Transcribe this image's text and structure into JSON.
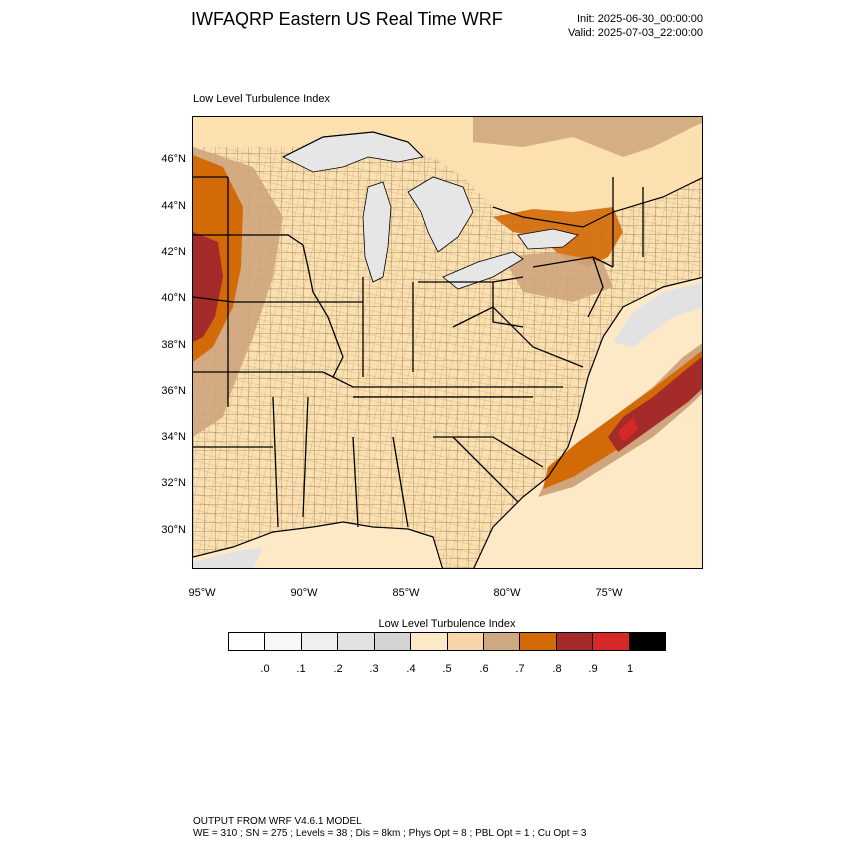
{
  "header": {
    "title": "IWFAQRP Eastern US Real Time WRF",
    "init": "Init: 2025-06-30_00:00:00",
    "valid": "Valid: 2025-07-03_22:00:00"
  },
  "map": {
    "field_label": "Low Level Turbulence Index",
    "lat_labels": [
      "46°N",
      "44°N",
      "42°N",
      "40°N",
      "38°N",
      "36°N",
      "34°N",
      "32°N",
      "30°N"
    ],
    "lon_labels": [
      "95°W",
      "90°W",
      "85°W",
      "80°W",
      "75°W"
    ],
    "colors": {
      "land_base": "#fde0b0",
      "water": "#e6e6e6",
      "ocean_light": "#fde9c6",
      "brown": "#cfa57d",
      "orange": "#d36a08",
      "dark_red": "#a52a2a",
      "red": "#d62828",
      "county_lines": "#000000"
    }
  },
  "legend": {
    "title": "Low Level Turbulence Index",
    "colors": [
      "#ffffff",
      "#f7f7f7",
      "#efefef",
      "#e2e2e2",
      "#d3d3d3",
      "#fde9c6",
      "#f6d6a9",
      "#cda883",
      "#d36a08",
      "#a52a2a",
      "#d62828",
      "#000000"
    ],
    "ticks": [
      ".0",
      ".1",
      ".2",
      ".3",
      ".4",
      ".5",
      ".6",
      ".7",
      ".8",
      ".9",
      "1"
    ]
  },
  "footer": {
    "line1": "OUTPUT FROM WRF V4.6.1 MODEL",
    "line2": "WE = 310 ; SN = 275 ; Levels = 38 ; Dis = 8km ; Phys Opt = 8 ; PBL Opt = 1 ; Cu Opt = 3"
  }
}
